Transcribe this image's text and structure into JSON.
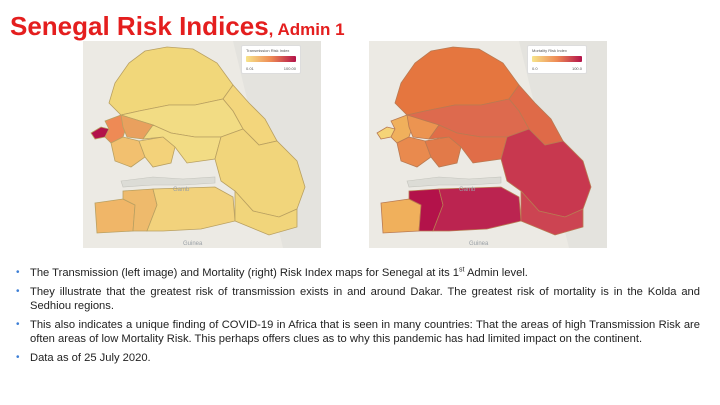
{
  "title": {
    "main": "Senegal Risk Indices",
    "sub": ", Admin 1"
  },
  "maps": {
    "left": {
      "legend_title": "Transmission Risk Index",
      "legend_min": "0.01",
      "legend_max": "100.00",
      "place_labels": [
        "Gamb",
        "Guinea"
      ]
    },
    "right": {
      "legend_title": "Mortality Risk Index",
      "legend_min": "0.0",
      "legend_max": "100.0",
      "place_labels": [
        "Gamb",
        "Guinea"
      ]
    }
  },
  "colors": {
    "title": "#e41e1e",
    "bullet": "#3d7fd6",
    "legend_low": "#f7e48a",
    "legend_mid": "#ee8a55",
    "legend_high": "#b3124a",
    "region_border": "#b9a061"
  },
  "bullets": [
    {
      "pre": "The Transmission (left image) and Mortality (right) Risk Index maps for Senegal at its 1",
      "sup": "st",
      "post": " Admin level."
    },
    {
      "pre": "They illustrate that the greatest risk of transmission exists in and around Dakar. The greatest risk of mortality is in the Kolda and Sedhiou regions.",
      "sup": "",
      "post": ""
    },
    {
      "pre": "This also indicates a unique finding of COVID-19 in Africa that is seen in many countries: That the areas of high Transmission Risk are often areas of low Mortality Risk. This perhaps offers clues as to why this pandemic has had limited impact on the continent.",
      "sup": "",
      "post": ""
    },
    {
      "pre": "Data as of 25 July 2020.",
      "sup": "",
      "post": ""
    }
  ]
}
